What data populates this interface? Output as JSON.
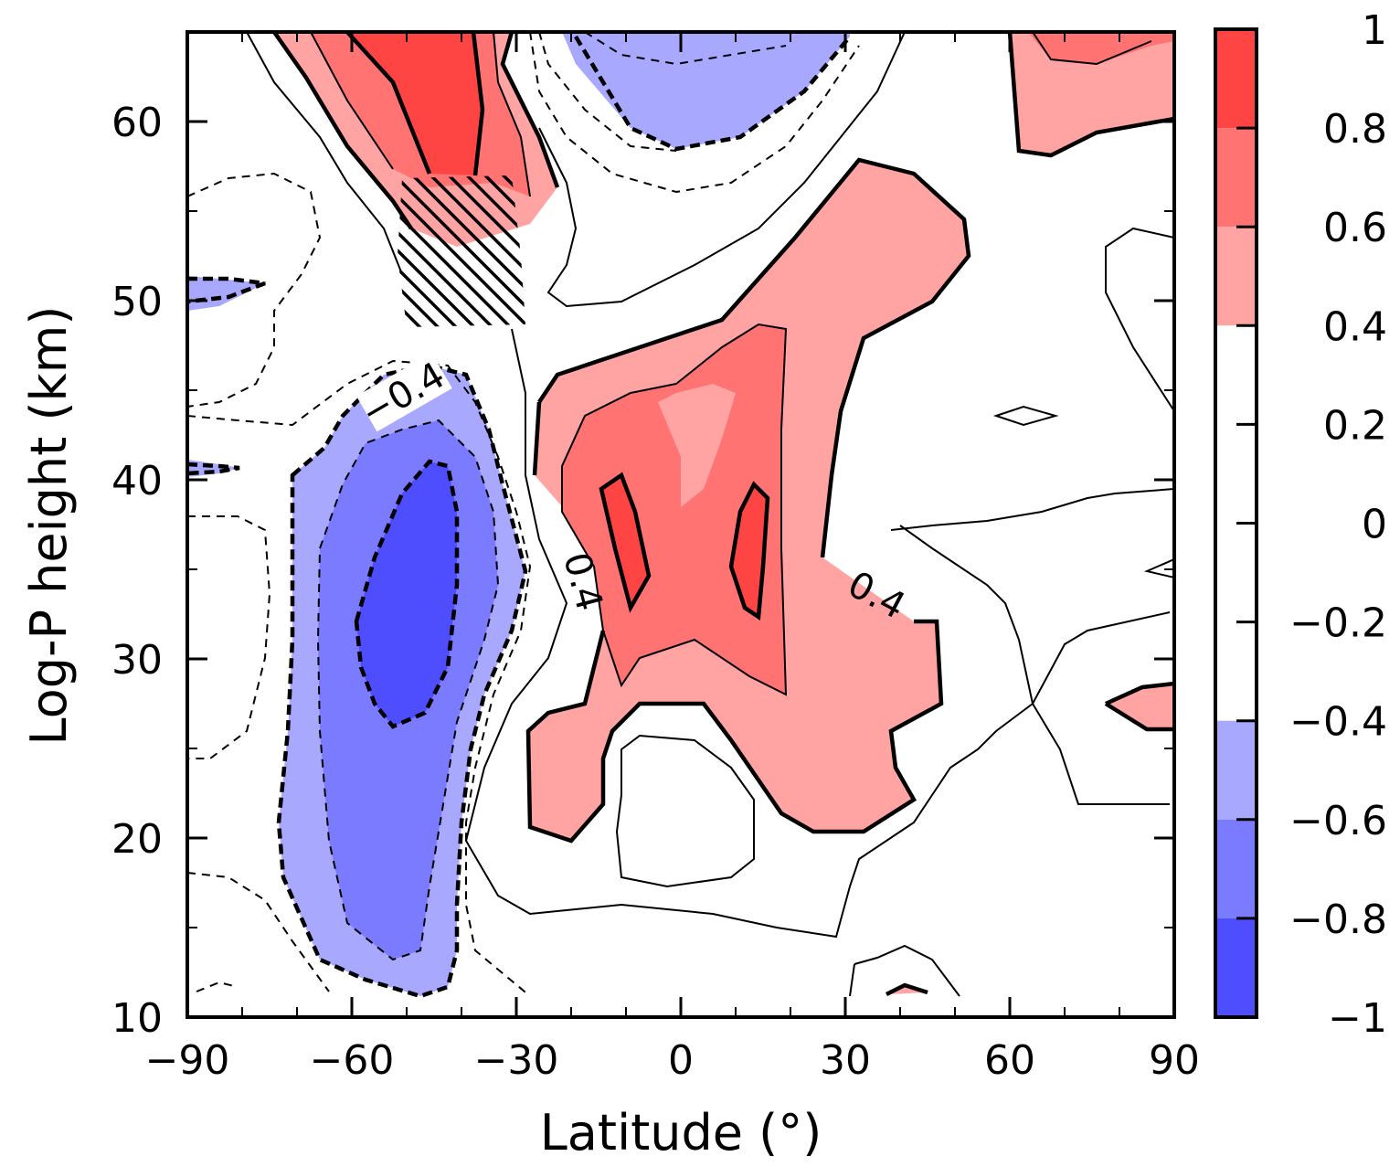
{
  "chart_data": {
    "type": "contour",
    "xlabel": "Latitude (°)",
    "ylabel": "Log-P height (km)",
    "xlim": [
      -90,
      90
    ],
    "ylim": [
      10,
      65
    ],
    "x_ticks": [
      "−90",
      "−60",
      "−30",
      "0",
      "30",
      "60",
      "90"
    ],
    "y_ticks": [
      "10",
      "20",
      "30",
      "40",
      "50",
      "60"
    ],
    "colorbar": {
      "ticks": [
        "1",
        "0.8",
        "0.6",
        "0.4",
        "0.2",
        "0",
        "−0.2",
        "−0.4",
        "−0.6",
        "−0.8",
        "−1"
      ],
      "levels": [
        {
          "from": 0.8,
          "to": 1.0,
          "color": "#ff4444"
        },
        {
          "from": 0.6,
          "to": 0.8,
          "color": "#ff7373"
        },
        {
          "from": 0.4,
          "to": 0.6,
          "color": "#ffa3a3"
        },
        {
          "from": -0.4,
          "to": 0.4,
          "color": "#ffffff"
        },
        {
          "from": -0.6,
          "to": -0.4,
          "color": "#a8a8ff"
        },
        {
          "from": -0.8,
          "to": -0.6,
          "color": "#7b7bff"
        },
        {
          "from": -1.0,
          "to": -0.8,
          "color": "#4e4eff"
        }
      ]
    },
    "contour_labels": [
      "−0.4",
      "0.4",
      "0.4"
    ],
    "regions": [
      {
        "sign": "positive",
        "max_level": 0.8,
        "lat_range": [
          -73,
          -33
        ],
        "height_range": [
          52,
          65
        ]
      },
      {
        "sign": "negative",
        "max_level": -0.4,
        "lat_range": [
          -25,
          15
        ],
        "height_range": [
          58,
          65
        ]
      },
      {
        "sign": "negative",
        "max_level": -0.8,
        "lat_range": [
          -75,
          -28
        ],
        "height_range": [
          11,
          46
        ]
      },
      {
        "sign": "positive",
        "max_level": 0.8,
        "lat_range": [
          -27,
          52
        ],
        "height_range": [
          20,
          58
        ]
      },
      {
        "sign": "positive",
        "max_level": 0.6,
        "lat_range": [
          62,
          90
        ],
        "height_range": [
          57,
          65
        ]
      },
      {
        "sign": "positive",
        "max_level": 0.4,
        "lat_range": [
          80,
          90
        ],
        "height_range": [
          26,
          29
        ]
      }
    ],
    "hatched_region": {
      "lat_range": [
        -51,
        -29
      ],
      "height_range": [
        48,
        57
      ]
    }
  }
}
